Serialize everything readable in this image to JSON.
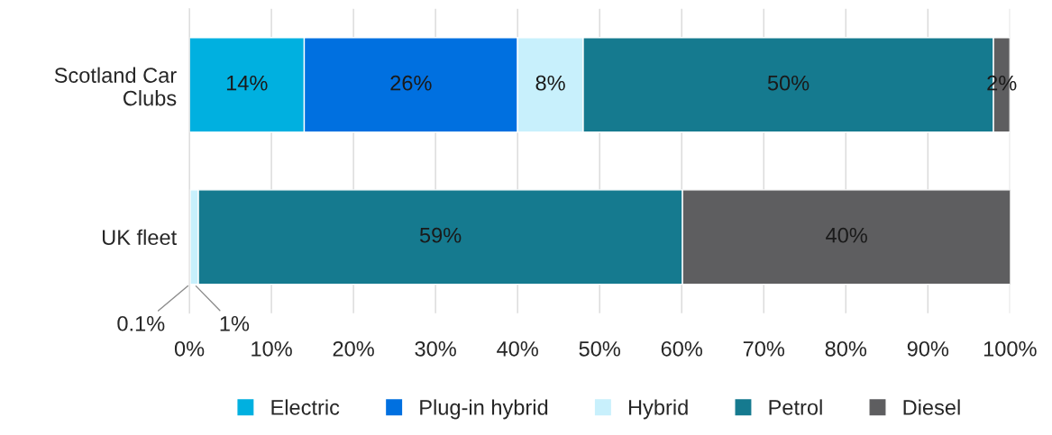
{
  "chart_data": {
    "type": "bar",
    "orientation": "horizontal",
    "stacked": true,
    "categories": [
      "Scotland Car\nClubs",
      "UK fleet"
    ],
    "series": [
      {
        "name": "Electric",
        "color": "#00b0e0",
        "values": [
          14,
          0.1
        ],
        "value_labels": [
          "14%",
          "0.1%"
        ]
      },
      {
        "name": "Plug-in hybrid",
        "color": "#0070e0",
        "values": [
          26,
          0
        ],
        "value_labels": [
          "26%",
          null
        ]
      },
      {
        "name": "Hybrid",
        "color": "#c8f0fc",
        "values": [
          8,
          1
        ],
        "value_labels": [
          "8%",
          "1%"
        ]
      },
      {
        "name": "Petrol",
        "color": "#157a8f",
        "values": [
          50,
          59
        ],
        "value_labels": [
          "50%",
          "59%"
        ]
      },
      {
        "name": "Diesel",
        "color": "#5e5e60",
        "values": [
          2,
          40
        ],
        "value_labels": [
          "2%",
          "40%"
        ]
      }
    ],
    "xlim": [
      0,
      100
    ],
    "xticks": [
      {
        "value": 0,
        "label": "0%"
      },
      {
        "value": 10,
        "label": "10%"
      },
      {
        "value": 20,
        "label": "20%"
      },
      {
        "value": 30,
        "label": "30%"
      },
      {
        "value": 40,
        "label": "40%"
      },
      {
        "value": 50,
        "label": "50%"
      },
      {
        "value": 60,
        "label": "60%"
      },
      {
        "value": 70,
        "label": "70%"
      },
      {
        "value": 80,
        "label": "80%"
      },
      {
        "value": 90,
        "label": "90%"
      },
      {
        "value": 100,
        "label": "100%"
      }
    ],
    "grid": "x",
    "legend": "bottom"
  }
}
